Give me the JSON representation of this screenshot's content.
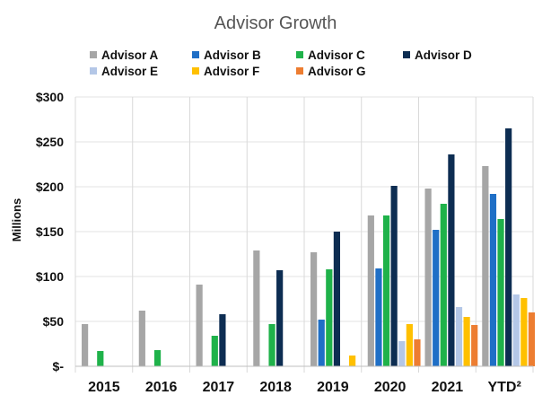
{
  "chart_data": {
    "type": "bar",
    "title": "Advisor Growth",
    "ylabel": "Millions",
    "xlabel": "",
    "categories": [
      "2015",
      "2016",
      "2017",
      "2018",
      "2019",
      "2020",
      "2021",
      "YTD²"
    ],
    "ylim": [
      0,
      300
    ],
    "yticks": [
      0,
      50,
      100,
      150,
      200,
      250,
      300
    ],
    "ytick_labels": [
      "$-",
      "$50",
      "$100",
      "$150",
      "$200",
      "$250",
      "$300"
    ],
    "grid": true,
    "legend_position": "top",
    "series": [
      {
        "name": "Advisor A",
        "color": "#a6a6a6",
        "values": [
          47,
          62,
          91,
          129,
          127,
          168,
          198,
          223
        ]
      },
      {
        "name": "Advisor B",
        "color": "#1f6fc6",
        "values": [
          0,
          0,
          0,
          0,
          52,
          109,
          152,
          192
        ]
      },
      {
        "name": "Advisor C",
        "color": "#1fb24a",
        "values": [
          17,
          18,
          34,
          47,
          108,
          168,
          181,
          164
        ]
      },
      {
        "name": "Advisor D",
        "color": "#0d2d52",
        "values": [
          0,
          0,
          58,
          107,
          150,
          201,
          236,
          265
        ]
      },
      {
        "name": "Advisor E",
        "color": "#b4c7e7",
        "values": [
          0,
          0,
          0,
          0,
          0,
          28,
          66,
          80
        ]
      },
      {
        "name": "Advisor F",
        "color": "#ffc000",
        "values": [
          0,
          0,
          0,
          0,
          12,
          47,
          55,
          76
        ]
      },
      {
        "name": "Advisor G",
        "color": "#ed7d31",
        "values": [
          0,
          0,
          0,
          0,
          0,
          30,
          46,
          60
        ]
      }
    ]
  }
}
